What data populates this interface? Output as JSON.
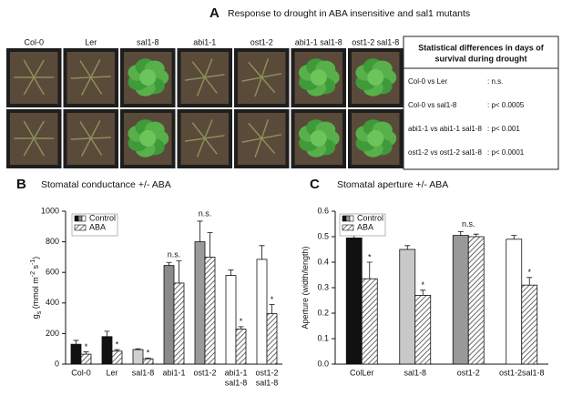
{
  "panel_a": {
    "letter": "A",
    "title": "Response to drought in ABA insensitive and sal1 mutants",
    "genotypes": [
      "Col-0",
      "Ler",
      "sal1-8",
      "abi1-1",
      "ost1-2",
      "abi1-1 sal1-8",
      "ost1-2 sal1-8"
    ],
    "table": {
      "header": [
        "Statistical differences in days of",
        "survival during drought"
      ],
      "rows": [
        [
          "Col-0 vs Ler",
          ": n.s."
        ],
        [
          "Col-0 vs sal1-8",
          ": p< 0.0005"
        ],
        [
          "abi1-1 vs abi1-1 sal1-8",
          ": p< 0.001"
        ],
        [
          "ost1-2 vs ost1-2 sal1-8",
          ": p< 0.0001"
        ]
      ]
    }
  },
  "chart_data": [
    {
      "type": "bar",
      "panel": "B",
      "title": "Stomatal conductance +/- ABA",
      "y_label": [
        {
          "text": "g"
        },
        {
          "text": "s",
          "shift": "sub"
        },
        {
          "text": " (mmol m"
        },
        {
          "text": "-2",
          "shift": "super"
        },
        {
          "text": " s"
        },
        {
          "text": "-1",
          "shift": "super"
        },
        {
          "text": ")"
        }
      ],
      "categories": [
        "Col-0",
        "Ler",
        "sal1-8",
        "abi1-1",
        "ost1-2",
        [
          "abi1-1",
          "sal1-8"
        ],
        [
          "ost1-2",
          "sal1-8"
        ]
      ],
      "series": [
        {
          "name": "Control",
          "colors": [
            "#111111",
            "#111111",
            "#d0d0d0",
            "#8a8a8a",
            "#9a9a9a",
            "#ffffff",
            "#ffffff"
          ],
          "values": [
            130,
            180,
            95,
            645,
            800,
            580,
            685
          ],
          "errors": [
            25,
            35,
            5,
            20,
            135,
            35,
            90
          ],
          "annotations": [
            null,
            null,
            null,
            "n.s.",
            "n.s.",
            null,
            null
          ]
        },
        {
          "name": "ABA",
          "hatch": true,
          "values": [
            65,
            85,
            35,
            530,
            700,
            230,
            330
          ],
          "errors": [
            15,
            10,
            5,
            145,
            160,
            15,
            60
          ],
          "annotations": [
            "*",
            "*",
            "*",
            null,
            null,
            "*",
            "*"
          ]
        }
      ],
      "ylim": [
        0,
        1000
      ],
      "yticks": [
        0,
        200,
        400,
        600,
        800,
        1000
      ]
    },
    {
      "type": "bar",
      "panel": "C",
      "title": "Stomatal aperture +/- ABA",
      "y_label": [
        {
          "text": "Aperture (width/length)"
        }
      ],
      "categories": [
        "ColLer",
        "sal1-8",
        "ost1-2",
        "ost1-2sal1-8"
      ],
      "series": [
        {
          "name": "Control",
          "colors": [
            "#111111",
            "#c8c8c8",
            "#999999",
            "#ffffff"
          ],
          "values": [
            0.495,
            0.45,
            0.505,
            0.49
          ],
          "errors": [
            0.02,
            0.015,
            0.015,
            0.015
          ],
          "annotations": [
            null,
            null,
            "n.s.",
            null
          ]
        },
        {
          "name": "ABA",
          "hatch": true,
          "values": [
            0.335,
            0.27,
            0.5,
            0.31
          ],
          "errors": [
            0.065,
            0.02,
            0.01,
            0.03
          ],
          "annotations": [
            "*",
            "*",
            null,
            "*"
          ]
        }
      ],
      "ylim": [
        0,
        0.6
      ],
      "yticks": [
        {
          "value": 0,
          "label": "0.0"
        },
        0.1,
        0.2,
        0.3,
        0.4,
        0.5,
        0.6
      ]
    }
  ]
}
